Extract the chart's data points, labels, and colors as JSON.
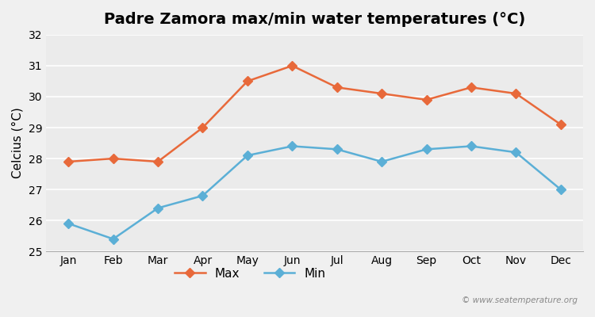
{
  "title": "Padre Zamora max/min water temperatures (°C)",
  "ylabel": "Celcius (°C)",
  "months": [
    "Jan",
    "Feb",
    "Mar",
    "Apr",
    "May",
    "Jun",
    "Jul",
    "Aug",
    "Sep",
    "Oct",
    "Nov",
    "Dec"
  ],
  "max_values": [
    27.9,
    28.0,
    27.9,
    29.0,
    30.5,
    31.0,
    30.3,
    30.1,
    29.9,
    30.3,
    30.1,
    29.1
  ],
  "min_values": [
    25.9,
    25.4,
    26.4,
    26.8,
    28.1,
    28.4,
    28.3,
    27.9,
    28.3,
    28.4,
    28.2,
    27.0
  ],
  "max_color": "#e8693a",
  "min_color": "#5bafd6",
  "ylim": [
    25.0,
    32.0
  ],
  "yticks": [
    25,
    26,
    27,
    28,
    29,
    30,
    31,
    32
  ],
  "bg_color": "#f0f0f0",
  "plot_bg_color": "#ebebeb",
  "grid_color": "#ffffff",
  "legend_labels": [
    "Max",
    "Min"
  ],
  "watermark": "© www.seatemperature.org",
  "title_fontsize": 14,
  "label_fontsize": 11,
  "tick_fontsize": 10,
  "marker": "D",
  "marker_size": 6,
  "line_width": 1.8
}
